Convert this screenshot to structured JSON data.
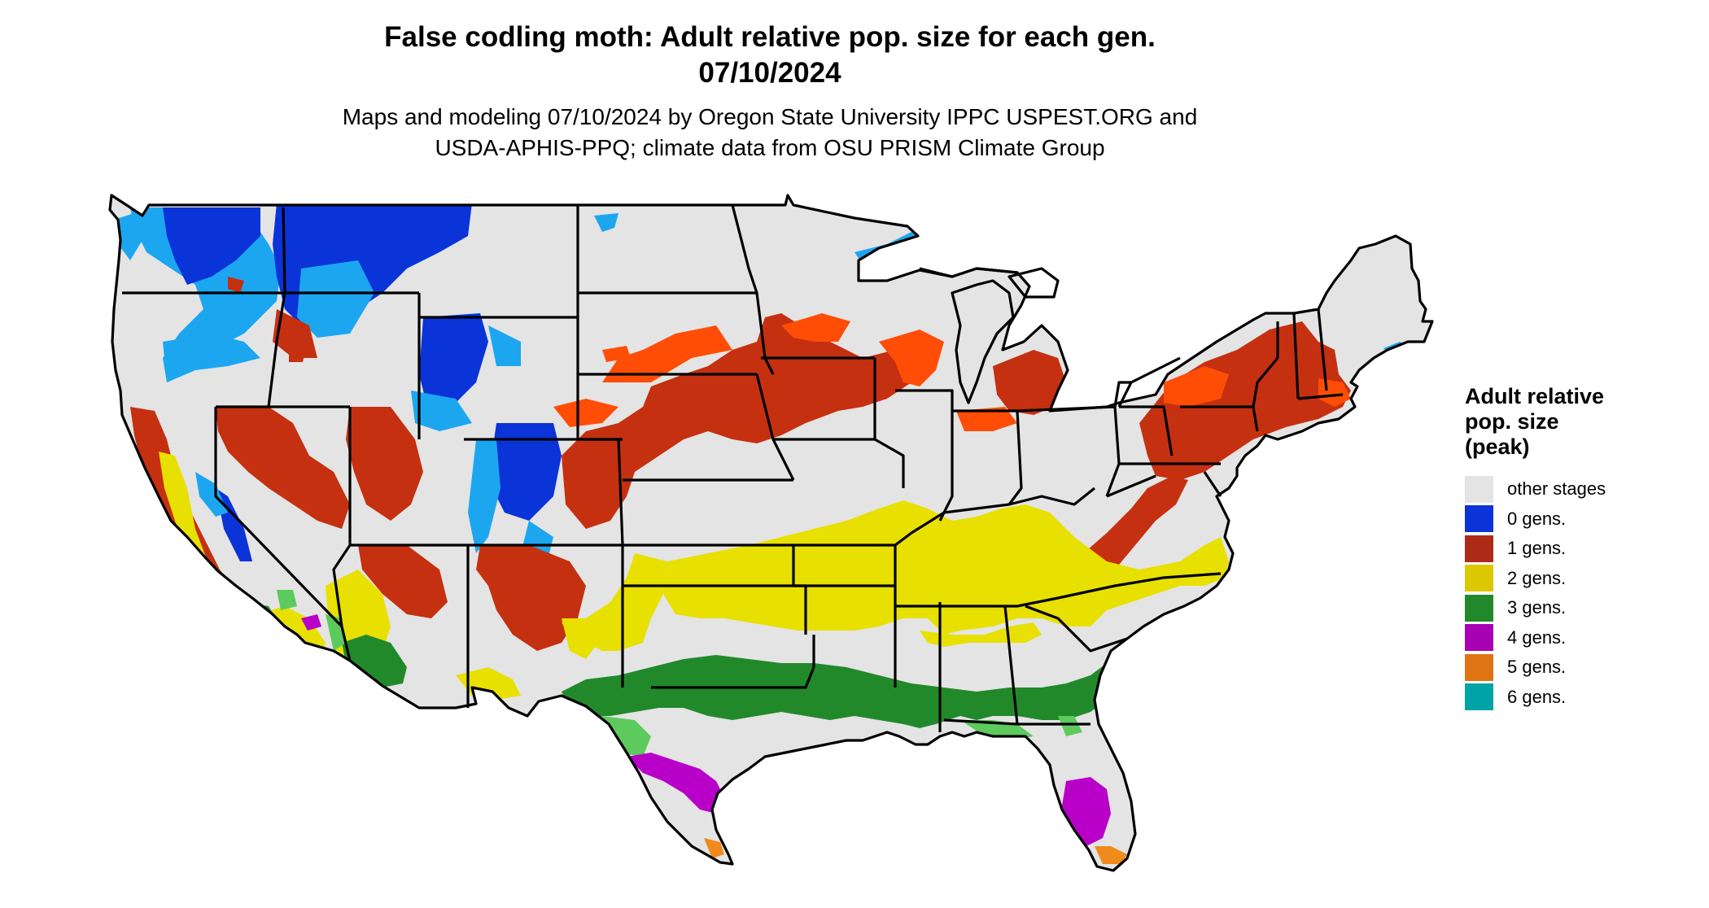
{
  "title": {
    "line1": "False codling moth: Adult relative pop. size for each gen.",
    "line2": "07/10/2024"
  },
  "subtitle": {
    "line1": "Maps and modeling 07/10/2024 by Oregon State University IPPC USPEST.ORG and",
    "line2": "USDA-APHIS-PPQ; climate data from OSU PRISM Climate Group"
  },
  "legend": {
    "title_line1": "Adult relative",
    "title_line2": "pop. size",
    "title_line3": "(peak)",
    "items": [
      {
        "label": "other stages",
        "color": "#e4e4e4"
      },
      {
        "label": "0 gens.",
        "color": "#0a33d8"
      },
      {
        "label": "1 gens.",
        "color": "#ad2a17"
      },
      {
        "label": "2 gens.",
        "color": "#dcc800"
      },
      {
        "label": "3 gens.",
        "color": "#22892a"
      },
      {
        "label": "4 gens.",
        "color": "#a800b4"
      },
      {
        "label": "5 gens.",
        "color": "#de7512"
      },
      {
        "label": "6 gens.",
        "color": "#00a4a6"
      }
    ]
  },
  "map": {
    "region": "Contiguous United States",
    "base_color": "#e4e4e4",
    "border_color": "#000000",
    "category_colors": {
      "gen0": "#0a33d8",
      "gen0_light": "#1ca6f0",
      "gen1": "#c53010",
      "gen1_light": "#ff4d06",
      "gen2": "#e8e000",
      "gen3": "#22892a",
      "gen3_light": "#5dca5d",
      "gen4": "#b800c8",
      "gen5": "#f08a1c"
    }
  }
}
